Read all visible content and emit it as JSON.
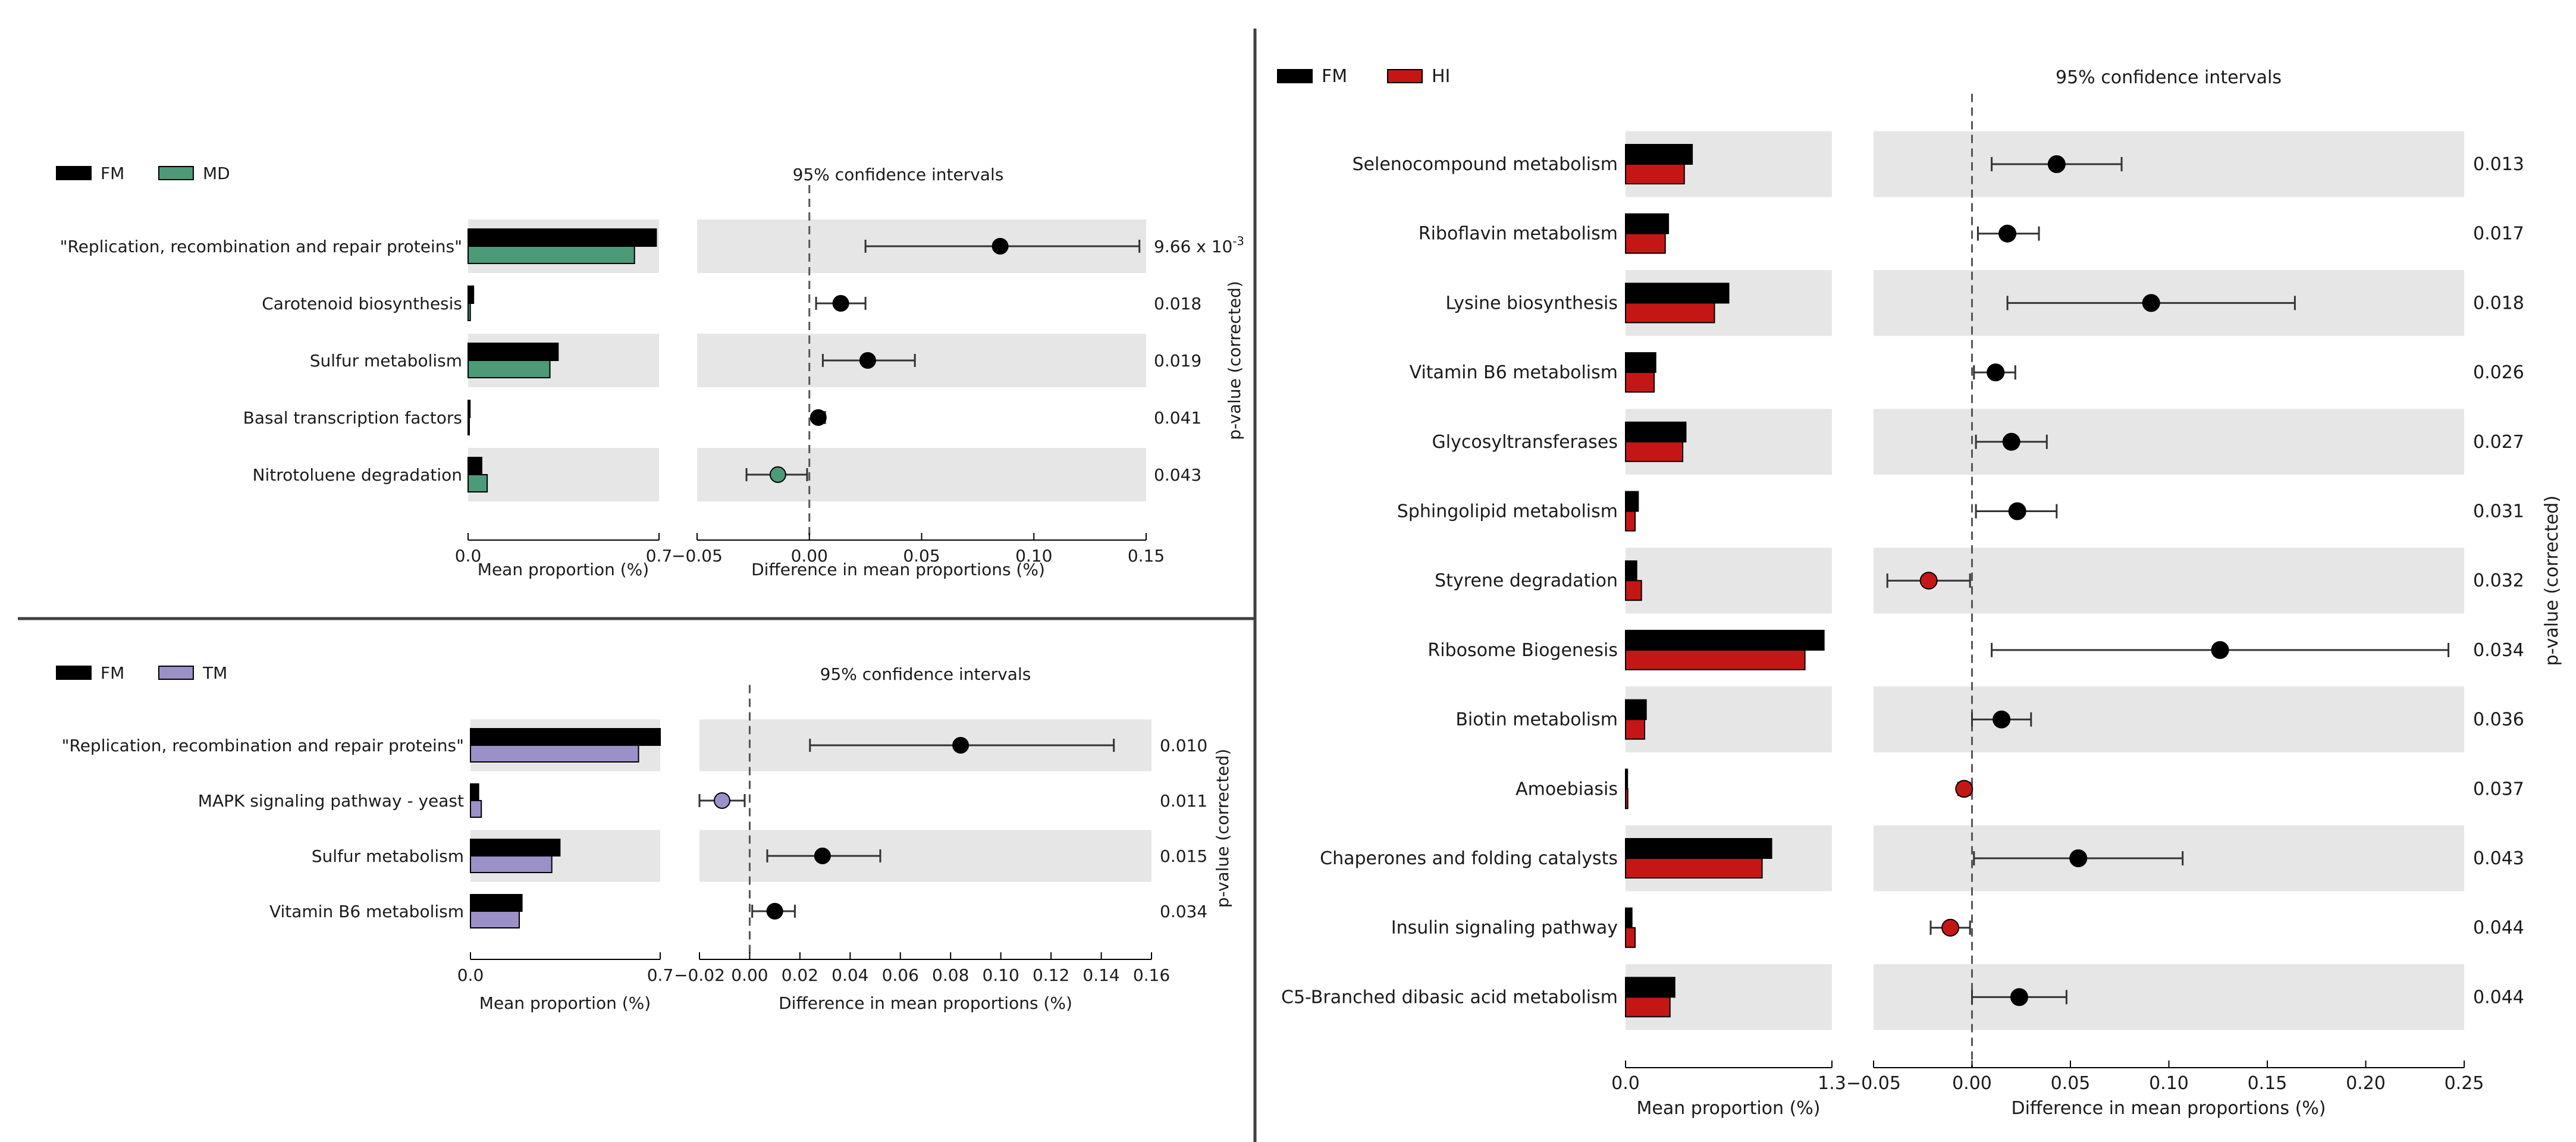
{
  "colors": {
    "fm": "#000000",
    "md": "#4c9a77",
    "tm": "#9c90c8",
    "hi": "#c51616",
    "band": "#e6e6e6",
    "divider": "#404040"
  },
  "chart_data": [
    {
      "type": "extended-error-bar",
      "groups": [
        "FM",
        "MD"
      ],
      "ci_title": "95% confidence intervals",
      "xlabel_left": "Mean proportion (%)",
      "xlabel_right": "Difference in mean proportions (%)",
      "pvalue_label": "p-value (corrected)",
      "mean_xlim": [
        0,
        0.7
      ],
      "mean_ticks": [
        "0.0",
        "0.7"
      ],
      "diff_xlim": [
        -0.05,
        0.15
      ],
      "diff_ticks": [
        "−0.05",
        "0.00",
        "0.05",
        "0.10",
        "0.15"
      ],
      "features": [
        {
          "name": "\"Replication, recombination and repair proteins\"",
          "mean_a": 0.69,
          "mean_b": 0.61,
          "diff": 0.085,
          "ci": [
            0.025,
            0.147
          ],
          "p": "9.66 x 10",
          "p_exp": "-3",
          "dot": "a"
        },
        {
          "name": "Carotenoid biosynthesis",
          "mean_a": 0.02,
          "mean_b": 0.008,
          "diff": 0.014,
          "ci": [
            0.003,
            0.025
          ],
          "p": "0.018",
          "dot": "a"
        },
        {
          "name": "Sulfur metabolism",
          "mean_a": 0.33,
          "mean_b": 0.3,
          "diff": 0.026,
          "ci": [
            0.006,
            0.047
          ],
          "p": "0.019",
          "dot": "a"
        },
        {
          "name": "Basal transcription factors",
          "mean_a": 0.007,
          "mean_b": 0.004,
          "diff": 0.004,
          "ci": [
            0.002,
            0.007
          ],
          "p": "0.041",
          "dot": "a"
        },
        {
          "name": "Nitrotoluene degradation",
          "mean_a": 0.05,
          "mean_b": 0.07,
          "diff": -0.014,
          "ci": [
            -0.028,
            -0.001
          ],
          "p": "0.043",
          "dot": "b"
        }
      ]
    },
    {
      "type": "extended-error-bar",
      "groups": [
        "FM",
        "TM"
      ],
      "ci_title": "95% confidence intervals",
      "xlabel_left": "Mean proportion (%)",
      "xlabel_right": "Difference in mean proportions (%)",
      "pvalue_label": "p-value (corrected)",
      "mean_xlim": [
        0,
        0.7
      ],
      "mean_ticks": [
        "0.0",
        "0.7"
      ],
      "diff_xlim": [
        -0.02,
        0.16
      ],
      "diff_ticks": [
        "−0.02",
        "0.00",
        "0.02",
        "0.04",
        "0.06",
        "0.08",
        "0.10",
        "0.12",
        "0.14",
        "0.16"
      ],
      "features": [
        {
          "name": "\"Replication, recombination and repair proteins\"",
          "mean_a": 0.7,
          "mean_b": 0.62,
          "diff": 0.084,
          "ci": [
            0.024,
            0.145
          ],
          "p": "0.010",
          "dot": "a"
        },
        {
          "name": "MAPK signaling pathway - yeast",
          "mean_a": 0.03,
          "mean_b": 0.04,
          "diff": -0.011,
          "ci": [
            -0.02,
            -0.002
          ],
          "p": "0.011",
          "dot": "b"
        },
        {
          "name": "Sulfur metabolism",
          "mean_a": 0.33,
          "mean_b": 0.3,
          "diff": 0.029,
          "ci": [
            0.007,
            0.052
          ],
          "p": "0.015",
          "dot": "a"
        },
        {
          "name": "Vitamin B6 metabolism",
          "mean_a": 0.19,
          "mean_b": 0.18,
          "diff": 0.01,
          "ci": [
            0.001,
            0.018
          ],
          "p": "0.034",
          "dot": "a"
        }
      ]
    },
    {
      "type": "extended-error-bar",
      "groups": [
        "FM",
        "HI"
      ],
      "ci_title": "95% confidence intervals",
      "xlabel_left": "Mean proportion (%)",
      "xlabel_right": "Difference in mean proportions (%)",
      "pvalue_label": "p-value (corrected)",
      "mean_xlim": [
        0,
        1.3
      ],
      "mean_ticks": [
        "0.0",
        "1.3"
      ],
      "diff_xlim": [
        -0.05,
        0.25
      ],
      "diff_ticks": [
        "−0.05",
        "0.00",
        "0.05",
        "0.10",
        "0.15",
        "0.20",
        "0.25"
      ],
      "features": [
        {
          "name": "Selenocompound metabolism",
          "mean_a": 0.42,
          "mean_b": 0.37,
          "diff": 0.043,
          "ci": [
            0.01,
            0.076
          ],
          "p": "0.013",
          "dot": "a"
        },
        {
          "name": "Riboflavin metabolism",
          "mean_a": 0.27,
          "mean_b": 0.25,
          "diff": 0.018,
          "ci": [
            0.003,
            0.034
          ],
          "p": "0.017",
          "dot": "a"
        },
        {
          "name": "Lysine biosynthesis",
          "mean_a": 0.65,
          "mean_b": 0.56,
          "diff": 0.091,
          "ci": [
            0.018,
            0.164
          ],
          "p": "0.018",
          "dot": "a"
        },
        {
          "name": "Vitamin B6 metabolism",
          "mean_a": 0.19,
          "mean_b": 0.18,
          "diff": 0.012,
          "ci": [
            0.001,
            0.022
          ],
          "p": "0.026",
          "dot": "a"
        },
        {
          "name": "Glycosyltransferases",
          "mean_a": 0.38,
          "mean_b": 0.36,
          "diff": 0.02,
          "ci": [
            0.002,
            0.038
          ],
          "p": "0.027",
          "dot": "a"
        },
        {
          "name": "Sphingolipid metabolism",
          "mean_a": 0.08,
          "mean_b": 0.06,
          "diff": 0.023,
          "ci": [
            0.002,
            0.043
          ],
          "p": "0.031",
          "dot": "a"
        },
        {
          "name": "Styrene degradation",
          "mean_a": 0.07,
          "mean_b": 0.1,
          "diff": -0.022,
          "ci": [
            -0.043,
            -0.001
          ],
          "p": "0.032",
          "dot": "b"
        },
        {
          "name": "Ribosome Biogenesis",
          "mean_a": 1.25,
          "mean_b": 1.13,
          "diff": 0.126,
          "ci": [
            0.01,
            0.242
          ],
          "p": "0.034",
          "dot": "a"
        },
        {
          "name": "Biotin metabolism",
          "mean_a": 0.13,
          "mean_b": 0.12,
          "diff": 0.015,
          "ci": [
            0.0,
            0.03
          ],
          "p": "0.036",
          "dot": "a"
        },
        {
          "name": "Amoebiasis",
          "mean_a": 0.012,
          "mean_b": 0.014,
          "diff": -0.004,
          "ci": [
            -0.007,
            -0.001
          ],
          "p": "0.037",
          "dot": "b"
        },
        {
          "name": "Chaperones and folding catalysts",
          "mean_a": 0.92,
          "mean_b": 0.86,
          "diff": 0.054,
          "ci": [
            0.001,
            0.107
          ],
          "p": "0.043",
          "dot": "a"
        },
        {
          "name": "Insulin signaling pathway",
          "mean_a": 0.04,
          "mean_b": 0.06,
          "diff": -0.011,
          "ci": [
            -0.021,
            -0.001
          ],
          "p": "0.044",
          "dot": "b"
        },
        {
          "name": "C5-Branched dibasic acid metabolism",
          "mean_a": 0.31,
          "mean_b": 0.28,
          "diff": 0.024,
          "ci": [
            0.0,
            0.048
          ],
          "p": "0.044",
          "dot": "a"
        }
      ]
    }
  ]
}
